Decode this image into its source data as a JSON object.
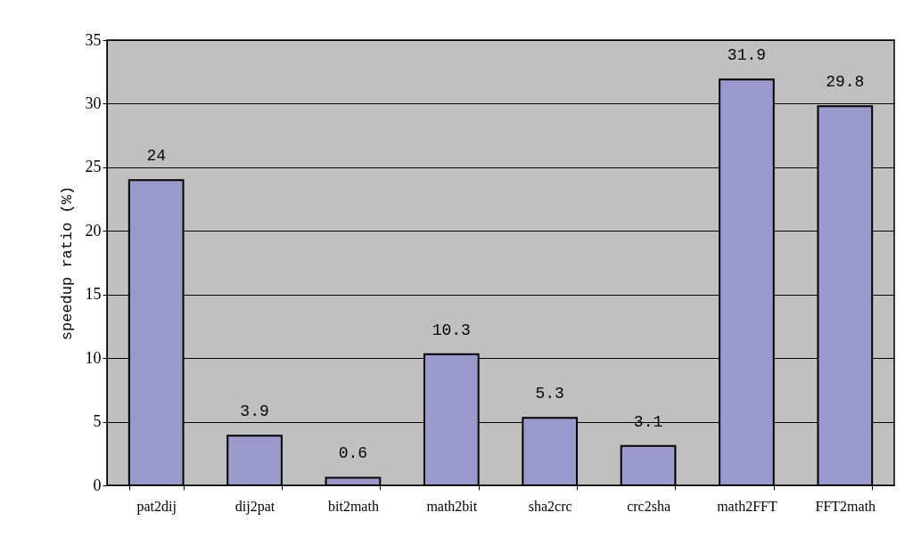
{
  "chart_data": {
    "type": "bar",
    "ylabel": "speedup ratio (%)",
    "categories": [
      "pat2dij",
      "dij2pat",
      "bit2math",
      "math2bit",
      "sha2crc",
      "crc2sha",
      "math2FFT",
      "FFT2math"
    ],
    "values": [
      24,
      3.9,
      0.6,
      10.3,
      5.3,
      3.1,
      31.9,
      29.8
    ],
    "color": "#9999cc",
    "ylim": [
      0,
      35
    ],
    "yticks": [
      0,
      5,
      10,
      15,
      20,
      25,
      30,
      35
    ],
    "grid": "y",
    "data_labels": true
  }
}
